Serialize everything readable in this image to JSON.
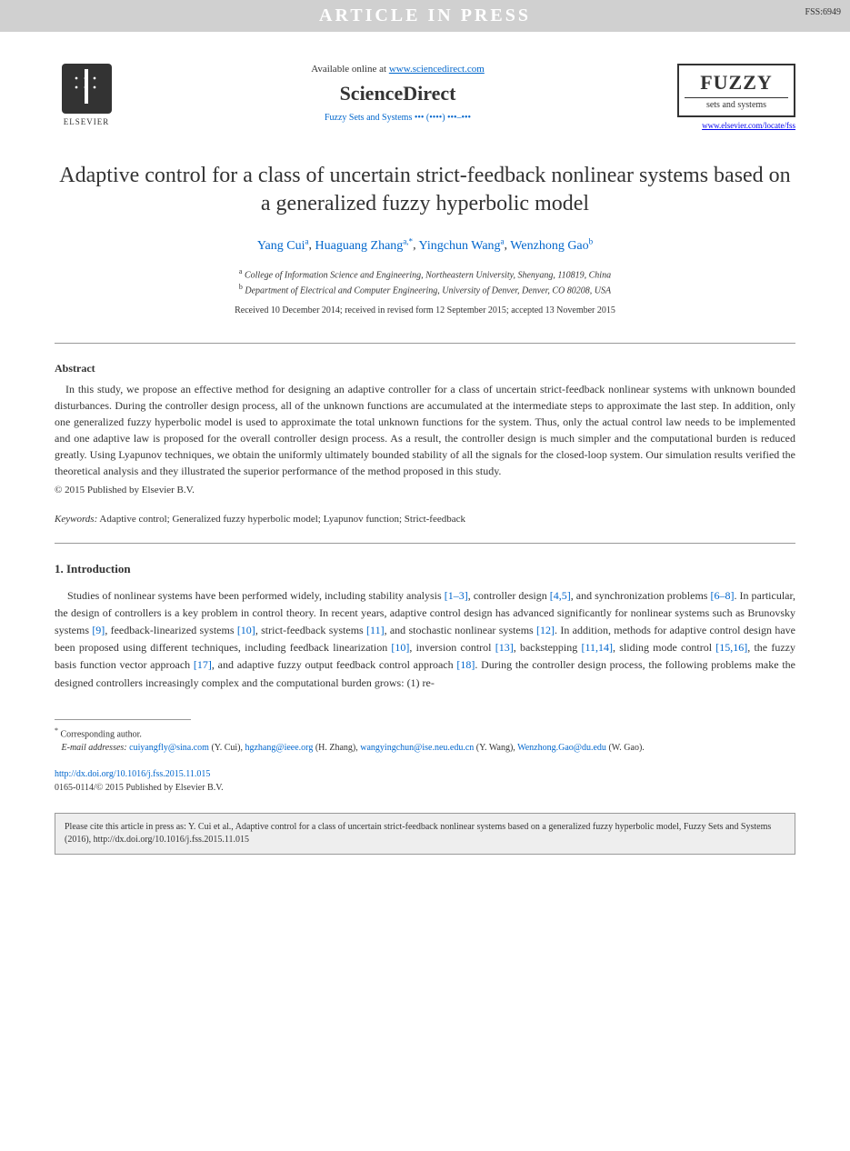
{
  "banner": {
    "text": "ARTICLE IN PRESS",
    "code": "FSS:6949"
  },
  "header": {
    "elsevier_label": "ELSEVIER",
    "available_text": "Available online at ",
    "available_link": "www.sciencedirect.com",
    "sciencedirect": "ScienceDirect",
    "journal_ref": "Fuzzy Sets and Systems ••• (••••) •••–•••",
    "fuzzy_title": "FUZZY",
    "fuzzy_sub": "sets and systems",
    "journal_link": "www.elsevier.com/locate/fss"
  },
  "title": "Adaptive control for a class of uncertain strict-feedback nonlinear systems based on a generalized fuzzy hyperbolic model",
  "authors": [
    {
      "name": "Yang Cui",
      "aff": "a"
    },
    {
      "name": "Huaguang Zhang",
      "aff": "a,*"
    },
    {
      "name": "Yingchun Wang",
      "aff": "a"
    },
    {
      "name": "Wenzhong Gao",
      "aff": "b"
    }
  ],
  "affiliations": {
    "a": "College of Information Science and Engineering, Northeastern University, Shenyang, 110819, China",
    "b": "Department of Electrical and Computer Engineering, University of Denver, Denver, CO 80208, USA"
  },
  "dates": "Received 10 December 2014; received in revised form 12 September 2015; accepted 13 November 2015",
  "abstract": {
    "heading": "Abstract",
    "text": "In this study, we propose an effective method for designing an adaptive controller for a class of uncertain strict-feedback nonlinear systems with unknown bounded disturbances. During the controller design process, all of the unknown functions are accumulated at the intermediate steps to approximate the last step. In addition, only one generalized fuzzy hyperbolic model is used to approximate the total unknown functions for the system. Thus, only the actual control law needs to be implemented and one adaptive law is proposed for the overall controller design process. As a result, the controller design is much simpler and the computational burden is reduced greatly. Using Lyapunov techniques, we obtain the uniformly ultimately bounded stability of all the signals for the closed-loop system. Our simulation results verified the theoretical analysis and they illustrated the superior performance of the method proposed in this study.",
    "copyright": "© 2015 Published by Elsevier B.V."
  },
  "keywords": {
    "label": "Keywords:",
    "text": " Adaptive control; Generalized fuzzy hyperbolic model; Lyapunov function; Strict-feedback"
  },
  "section1": {
    "heading": "1. Introduction",
    "para": "Studies of nonlinear systems have been performed widely, including stability analysis [1–3], controller design [4,5], and synchronization problems [6–8]. In particular, the design of controllers is a key problem in control theory. In recent years, adaptive control design has advanced significantly for nonlinear systems such as Brunovsky systems [9], feedback-linearized systems [10], strict-feedback systems [11], and stochastic nonlinear systems [12]. In addition, methods for adaptive control design have been proposed using different techniques, including feedback linearization [10], inversion control [13], backstepping [11,14], sliding mode control [15,16], the fuzzy basis function vector approach [17], and adaptive fuzzy output feedback control approach [18]. During the controller design process, the following problems make the designed controllers increasingly complex and the computational burden grows: (1) re-",
    "refs": {
      "r1": "[1–3]",
      "r2": "[4,5]",
      "r3": "[6–8]",
      "r4": "[9]",
      "r5": "[10]",
      "r6": "[11]",
      "r7": "[12]",
      "r8": "[10]",
      "r9": "[13]",
      "r10": "[11,14]",
      "r11": "[15,16]",
      "r12": "[17]",
      "r13": "[18]"
    }
  },
  "footnote": {
    "corresponding": "Corresponding author.",
    "email_label": "E-mail addresses:",
    "emails": [
      {
        "addr": "cuiyangfly@sina.com",
        "who": "(Y. Cui)"
      },
      {
        "addr": "hgzhang@ieee.org",
        "who": "(H. Zhang)"
      },
      {
        "addr": "wangyingchun@ise.neu.edu.cn",
        "who": "(Y. Wang)"
      },
      {
        "addr": "Wenzhong.Gao@du.edu",
        "who": "(W. Gao)"
      }
    ]
  },
  "doi": {
    "url": "http://dx.doi.org/10.1016/j.fss.2015.11.015",
    "issn": "0165-0114/© 2015 Published by Elsevier B.V."
  },
  "citebox": "Please cite this article in press as: Y. Cui et al., Adaptive control for a class of uncertain strict-feedback nonlinear systems based on a generalized fuzzy hyperbolic model, Fuzzy Sets and Systems (2016), http://dx.doi.org/10.1016/j.fss.2015.11.015"
}
